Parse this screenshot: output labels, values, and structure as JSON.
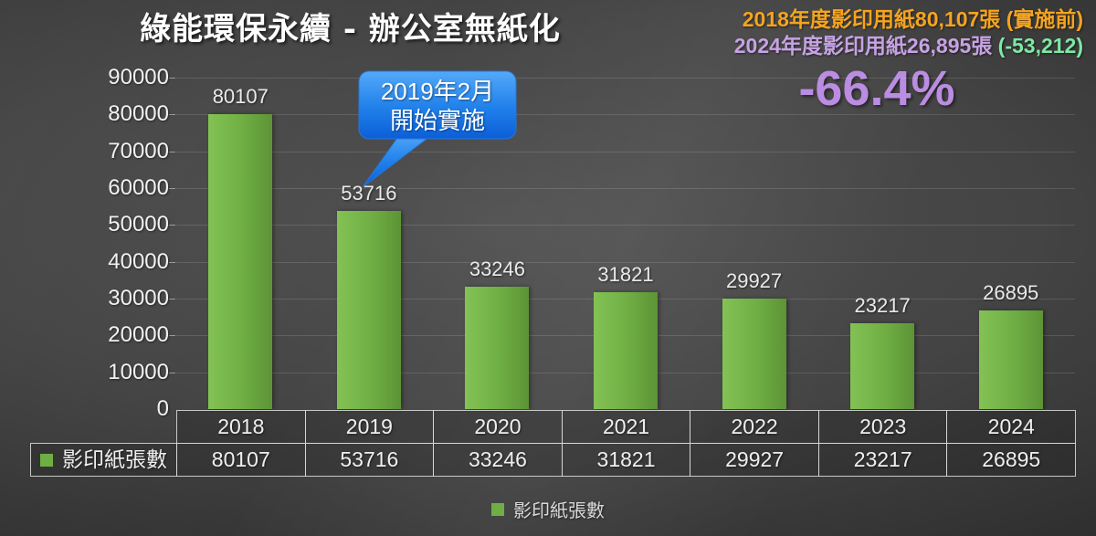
{
  "slide": {
    "title": "綠能環保永續 - 辦公室無紙化",
    "header_right": {
      "line1": "2018年度影印用紙80,107張 (實施前)",
      "line2_main": "2024年度影印用紙26,895張",
      "line2_delta": " (-53,212)",
      "percent": "-66.4%"
    },
    "callout": {
      "line1": "2019年2月",
      "line2": "開始實施"
    }
  },
  "colors": {
    "orange": "#f5a41f",
    "lavender": "#c7a2e4",
    "light_green": "#7ee9a3",
    "percent_purple": "#ba8ce2",
    "bar_green": "#6fae44",
    "callout_blue_top": "#54a9f8",
    "callout_blue_bottom": "#0b5fd8"
  },
  "chart_data": {
    "type": "bar",
    "title": "綠能環保永續 - 辦公室無紙化",
    "categories": [
      "2018",
      "2019",
      "2020",
      "2021",
      "2022",
      "2023",
      "2024"
    ],
    "series": [
      {
        "name": "影印紙張數",
        "values": [
          80107,
          53716,
          33246,
          31821,
          29927,
          23217,
          26895
        ]
      }
    ],
    "ylabel": "",
    "xlabel": "",
    "ylim": [
      0,
      90000
    ],
    "ytick_step": 10000,
    "grid": true,
    "data_labels": true,
    "legend_position": "bottom",
    "data_table": true
  },
  "legend": {
    "label": "影印紙張數"
  }
}
